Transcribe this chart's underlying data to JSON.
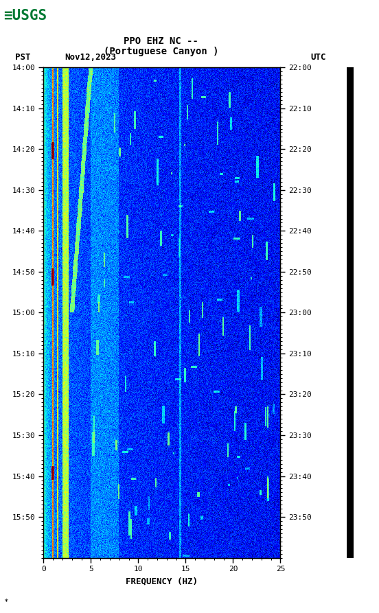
{
  "title_line1": "PPO EHZ NC --",
  "title_line2": "(Portuguese Canyon )",
  "date_label": "Nov12,2023",
  "left_tz": "PST",
  "right_tz": "UTC",
  "left_times": [
    "14:00",
    "14:10",
    "14:20",
    "14:30",
    "14:40",
    "14:50",
    "15:00",
    "15:10",
    "15:20",
    "15:30",
    "15:40",
    "15:50"
  ],
  "right_times": [
    "22:00",
    "22:10",
    "22:20",
    "22:30",
    "22:40",
    "22:50",
    "23:00",
    "23:10",
    "23:20",
    "23:30",
    "23:40",
    "23:50"
  ],
  "freq_min": 0,
  "freq_max": 25,
  "freq_ticks": [
    0,
    5,
    10,
    15,
    20,
    25
  ],
  "freq_label": "FREQUENCY (HZ)",
  "fig_width": 5.52,
  "fig_height": 8.93,
  "bg_color": "#ffffff",
  "colormap": "jet",
  "n_freq": 500,
  "n_time": 720
}
